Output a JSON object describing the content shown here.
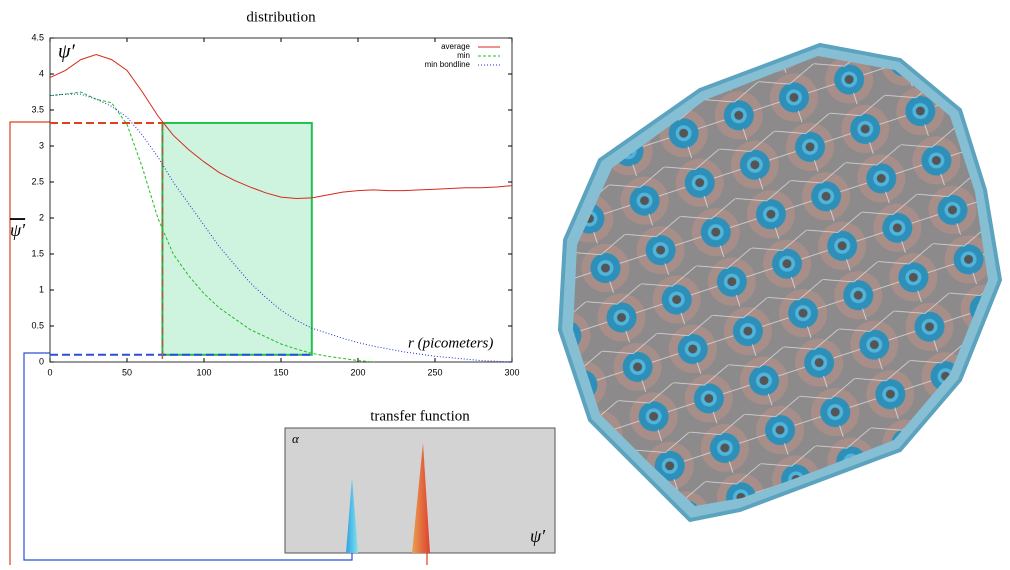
{
  "chart_data": {
    "type": "line",
    "title": "distribution",
    "y_label": "ψ′",
    "y_axis_label": "ψ′",
    "x_label": "r (picometers)",
    "x": [
      0,
      10,
      20,
      30,
      40,
      50,
      60,
      70,
      80,
      90,
      100,
      110,
      120,
      130,
      140,
      150,
      160,
      170,
      180,
      190,
      200,
      210,
      220,
      230,
      240,
      250,
      260,
      270,
      280,
      290,
      300
    ],
    "series": [
      {
        "name": "average",
        "color": "#d62a1a",
        "dash": "none",
        "values": [
          3.95,
          4.05,
          4.2,
          4.27,
          4.2,
          4.05,
          3.75,
          3.42,
          3.15,
          2.95,
          2.78,
          2.63,
          2.52,
          2.43,
          2.35,
          2.29,
          2.27,
          2.28,
          2.32,
          2.36,
          2.38,
          2.39,
          2.38,
          2.38,
          2.39,
          2.4,
          2.41,
          2.42,
          2.42,
          2.43,
          2.45
        ]
      },
      {
        "name": "min",
        "color": "#1fbf1f",
        "dash": "3,2",
        "values": [
          3.7,
          3.72,
          3.75,
          3.65,
          3.6,
          3.3,
          2.7,
          2.0,
          1.5,
          1.2,
          0.95,
          0.75,
          0.6,
          0.45,
          0.35,
          0.25,
          0.18,
          0.12,
          0.08,
          0.05,
          0.02,
          0,
          null,
          null,
          null,
          null,
          null,
          null,
          null,
          null,
          null
        ]
      },
      {
        "name": "min bondline",
        "color": "#1a2fd0",
        "dash": "1,2",
        "values": [
          3.7,
          3.72,
          3.72,
          3.65,
          3.55,
          3.4,
          3.15,
          2.85,
          2.5,
          2.2,
          1.9,
          1.6,
          1.35,
          1.1,
          0.9,
          0.72,
          0.58,
          0.47,
          0.4,
          0.33,
          0.27,
          0.22,
          0.18,
          0.14,
          0.11,
          0.08,
          0.06,
          0.04,
          0.02,
          0.01,
          0
        ]
      }
    ],
    "selection": {
      "x": [
        73,
        170
      ],
      "y": [
        0.1,
        3.32
      ]
    },
    "xlim": [
      0,
      300
    ],
    "xticks": [
      0,
      50,
      100,
      150,
      200,
      250,
      300
    ],
    "ylim": [
      0,
      4.5
    ],
    "yticks": [
      0,
      0.5,
      1,
      1.5,
      2,
      2.5,
      3,
      3.5,
      4,
      4.5
    ],
    "legend": "top-right"
  },
  "transfer_function": {
    "title": "transfer function",
    "y_label": "α",
    "x_label": "ψ′"
  }
}
